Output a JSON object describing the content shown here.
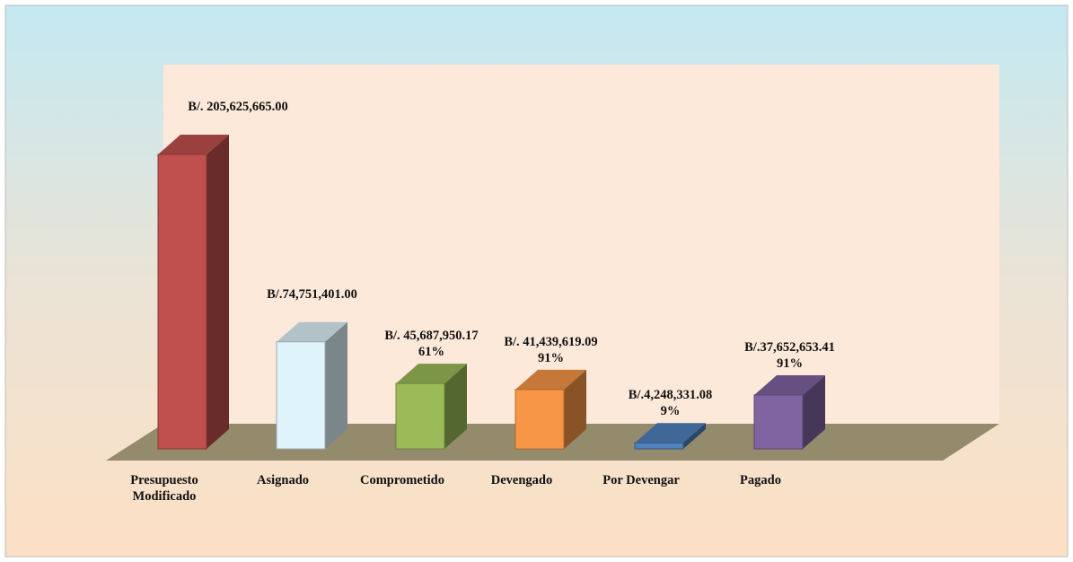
{
  "chart_data": {
    "type": "bar3d",
    "categories": [
      "Presupuesto Modificado",
      "Asignado",
      "Comprometido",
      "Devengado",
      "Por Devengar",
      "Pagado"
    ],
    "values": [
      205625665.0,
      74751401.0,
      45687950.17,
      41439619.09,
      4248331.08,
      37652653.41
    ],
    "value_labels": [
      "B/. 205,625,665.00",
      "B/.74,751,401.00",
      "B/. 45,687,950.17",
      "B/. 41,439,619.09",
      "B/.4,248,331.08",
      "B/.37,652,653.41"
    ],
    "percent_labels": [
      null,
      null,
      "61%",
      "91%",
      "9%",
      "91%"
    ],
    "colors": [
      "#c0504d",
      "#dff3fb",
      "#9bbb59",
      "#f79646",
      "#4f81bd",
      "#8064a2"
    ]
  }
}
